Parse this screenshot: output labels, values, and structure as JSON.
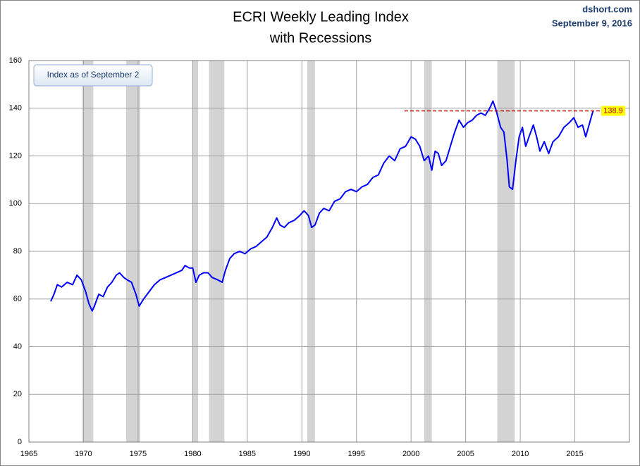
{
  "chart_data": {
    "type": "line",
    "title": [
      "ECRI Weekly Leading Index",
      "with Recessions"
    ],
    "source": "dshort.com",
    "date": "September 9, 2016",
    "annotation": "Index as of September 2",
    "xlim": [
      1965,
      2020
    ],
    "xticks": [
      1965,
      1970,
      1975,
      1980,
      1985,
      1990,
      1995,
      2000,
      2005,
      2010,
      2015
    ],
    "ylim": [
      0,
      160
    ],
    "yticks": [
      0,
      20,
      40,
      60,
      80,
      100,
      120,
      140,
      160
    ],
    "grid": true,
    "recession_color": "#d3d3d3",
    "recessions": [
      [
        1969.9,
        1970.9
      ],
      [
        1973.9,
        1975.2
      ],
      [
        1980.0,
        1980.5
      ],
      [
        1981.5,
        1982.9
      ],
      [
        1990.5,
        1991.2
      ],
      [
        2001.2,
        2001.9
      ],
      [
        2007.9,
        2009.5
      ]
    ],
    "reference": {
      "value": 138.9,
      "x_start": 1999.4,
      "color": "#c00000",
      "label_color": "#ffff00"
    },
    "x": [
      1967.0,
      1967.3,
      1967.6,
      1968.0,
      1968.5,
      1969.0,
      1969.4,
      1969.8,
      1970.2,
      1970.5,
      1970.8,
      1971.0,
      1971.4,
      1971.8,
      1972.2,
      1972.6,
      1973.0,
      1973.3,
      1973.7,
      1974.0,
      1974.4,
      1974.8,
      1975.1,
      1975.5,
      1976.0,
      1976.5,
      1977.0,
      1977.5,
      1978.0,
      1978.5,
      1979.0,
      1979.3,
      1979.7,
      1980.0,
      1980.3,
      1980.6,
      1981.0,
      1981.4,
      1981.8,
      1982.3,
      1982.7,
      1983.0,
      1983.4,
      1983.8,
      1984.3,
      1984.8,
      1985.3,
      1985.8,
      1986.3,
      1986.8,
      1987.3,
      1987.7,
      1988.0,
      1988.4,
      1988.8,
      1989.3,
      1989.8,
      1990.2,
      1990.6,
      1990.9,
      1991.2,
      1991.6,
      1992.0,
      1992.5,
      1993.0,
      1993.5,
      1994.0,
      1994.5,
      1995.0,
      1995.5,
      1996.0,
      1996.5,
      1997.0,
      1997.5,
      1998.0,
      1998.5,
      1999.0,
      1999.5,
      2000.0,
      2000.4,
      2000.8,
      2001.2,
      2001.6,
      2001.9,
      2002.2,
      2002.5,
      2002.8,
      2003.2,
      2003.6,
      2004.0,
      2004.4,
      2004.8,
      2005.2,
      2005.6,
      2006.0,
      2006.4,
      2006.8,
      2007.2,
      2007.5,
      2007.8,
      2008.2,
      2008.5,
      2008.8,
      2009.0,
      2009.3,
      2009.6,
      2009.9,
      2010.2,
      2010.5,
      2010.8,
      2011.2,
      2011.5,
      2011.8,
      2012.2,
      2012.6,
      2013.0,
      2013.5,
      2014.0,
      2014.5,
      2014.9,
      2015.3,
      2015.7,
      2016.0,
      2016.3,
      2016.67
    ],
    "series": [
      {
        "name": "ECRI Weekly Leading Index",
        "color": "#0000ff",
        "values": [
          59,
          62,
          66,
          65,
          67,
          66,
          70,
          68,
          63,
          58,
          55,
          57,
          62,
          61,
          65,
          67,
          70,
          71,
          69,
          68,
          67,
          62,
          57,
          60,
          63,
          66,
          68,
          69,
          70,
          71,
          72,
          74,
          73,
          73,
          67,
          70,
          71,
          71,
          69,
          68,
          67,
          72,
          77,
          79,
          80,
          79,
          81,
          82,
          84,
          86,
          90,
          94,
          91,
          90,
          92,
          93,
          95,
          97,
          95,
          90,
          91,
          96,
          98,
          97,
          101,
          102,
          105,
          106,
          105,
          107,
          108,
          111,
          112,
          117,
          120,
          118,
          123,
          124,
          128,
          127,
          124,
          118,
          120,
          114,
          122,
          121,
          116,
          118,
          124,
          130,
          135,
          132,
          134,
          135,
          137,
          138,
          137,
          140,
          143,
          139,
          132,
          130,
          118,
          107,
          106,
          118,
          128,
          132,
          124,
          128,
          133,
          128,
          122,
          126,
          121,
          126,
          128,
          132,
          134,
          136,
          132,
          133,
          128,
          133,
          138.9
        ]
      }
    ]
  }
}
